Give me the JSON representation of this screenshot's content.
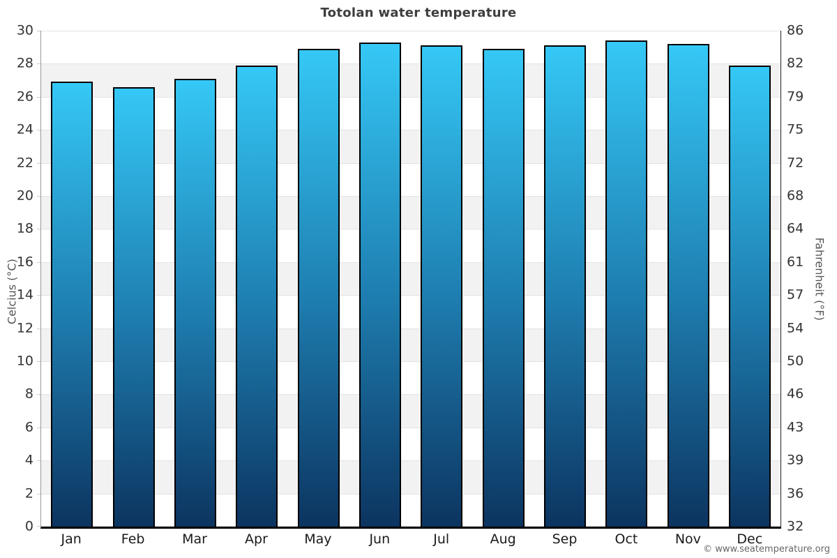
{
  "title": "Totolan water temperature",
  "footer": {
    "credit": "© www.seatemperature.org"
  },
  "colors": {
    "bar_gradient_top": "#35c8f6",
    "bar_gradient_mid": "#1e7eb0",
    "bar_gradient_bottom": "#0c3460",
    "bar_border": "#000000",
    "band_gray": "#f2f2f2",
    "gridline": "#e3e3e3",
    "left_spine": "#999999",
    "right_spine": "#222222",
    "bottom_axis": "#000000",
    "title_text": "#3e3e3e",
    "tick_text": "#333333",
    "axis_title_text": "#555555",
    "footer_text": "#666666"
  },
  "chart_data": {
    "type": "bar",
    "title": "Totolan water temperature",
    "categories": [
      "Jan",
      "Feb",
      "Mar",
      "Apr",
      "May",
      "Jun",
      "Jul",
      "Aug",
      "Sep",
      "Oct",
      "Nov",
      "Dec"
    ],
    "values": [
      26.9,
      26.6,
      27.1,
      27.9,
      28.9,
      29.3,
      29.1,
      28.9,
      29.1,
      29.4,
      29.2,
      27.9
    ],
    "unit": "°C",
    "xlabel": "",
    "ylabel_left": "Celcius (°C)",
    "ylabel_right": "Fahrenheit (°F)",
    "ylim": [
      0,
      30
    ],
    "yticks_celsius_top_to_bottom": [
      30,
      28,
      26,
      24,
      22,
      20,
      18,
      16,
      14,
      12,
      10,
      8,
      6,
      4,
      2,
      0
    ],
    "yticks_fahrenheit_top_to_bottom": [
      86,
      82,
      79,
      75,
      72,
      68,
      64,
      61,
      57,
      54,
      50,
      46,
      43,
      39,
      36,
      32
    ],
    "grid": "horizontal alternating white/gray bands every 2°C with light gridlines",
    "legend": "none",
    "bar_count": 12
  }
}
